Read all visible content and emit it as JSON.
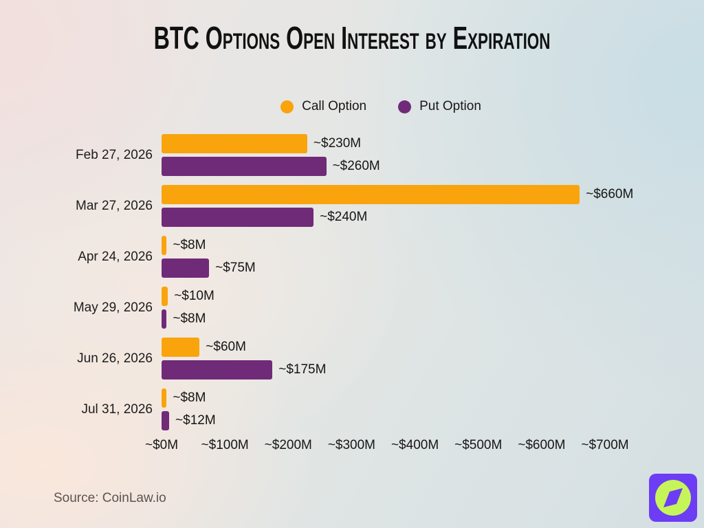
{
  "title": "BTC Options Open Interest by Expiration",
  "source": "Source: CoinLaw.io",
  "colors": {
    "call_orange": "#F9A40D",
    "put_purple": "#702B78",
    "logo_bg": "#6C3DF4",
    "logo_circle": "#C6F55A",
    "text_dark": "#151515",
    "source_gray": "#5C5450"
  },
  "chart_data": {
    "type": "bar",
    "orientation": "horizontal",
    "title": "BTC Options Open Interest by Expiration",
    "categories": [
      "Feb 27, 2026",
      "Mar 27, 2026",
      "Apr 24, 2026",
      "May 29, 2026",
      "Jun 26, 2026",
      "Jul 31, 2026"
    ],
    "series": [
      {
        "name": "Call Option",
        "color": "#F9A40D",
        "values": [
          230,
          660,
          8,
          10,
          60,
          8
        ],
        "labels": [
          "~$230M",
          "~$660M",
          "~$8M",
          "~$10M",
          "~$60M",
          "~$8M"
        ]
      },
      {
        "name": "Put Option",
        "color": "#702B78",
        "values": [
          260,
          240,
          75,
          8,
          175,
          12
        ],
        "labels": [
          "~$260M",
          "~$240M",
          "~$75M",
          "~$8M",
          "~$175M",
          "~$12M"
        ]
      }
    ],
    "xlabel": "",
    "ylabel": "",
    "xlim": [
      0,
      700
    ],
    "x_ticks": [
      "~$0M",
      "~$100M",
      "~$200M",
      "~$300M",
      "~$400M",
      "~$500M",
      "~$600M",
      "~$700M"
    ],
    "grid": false,
    "legend_position": "top",
    "value_labels": true
  }
}
